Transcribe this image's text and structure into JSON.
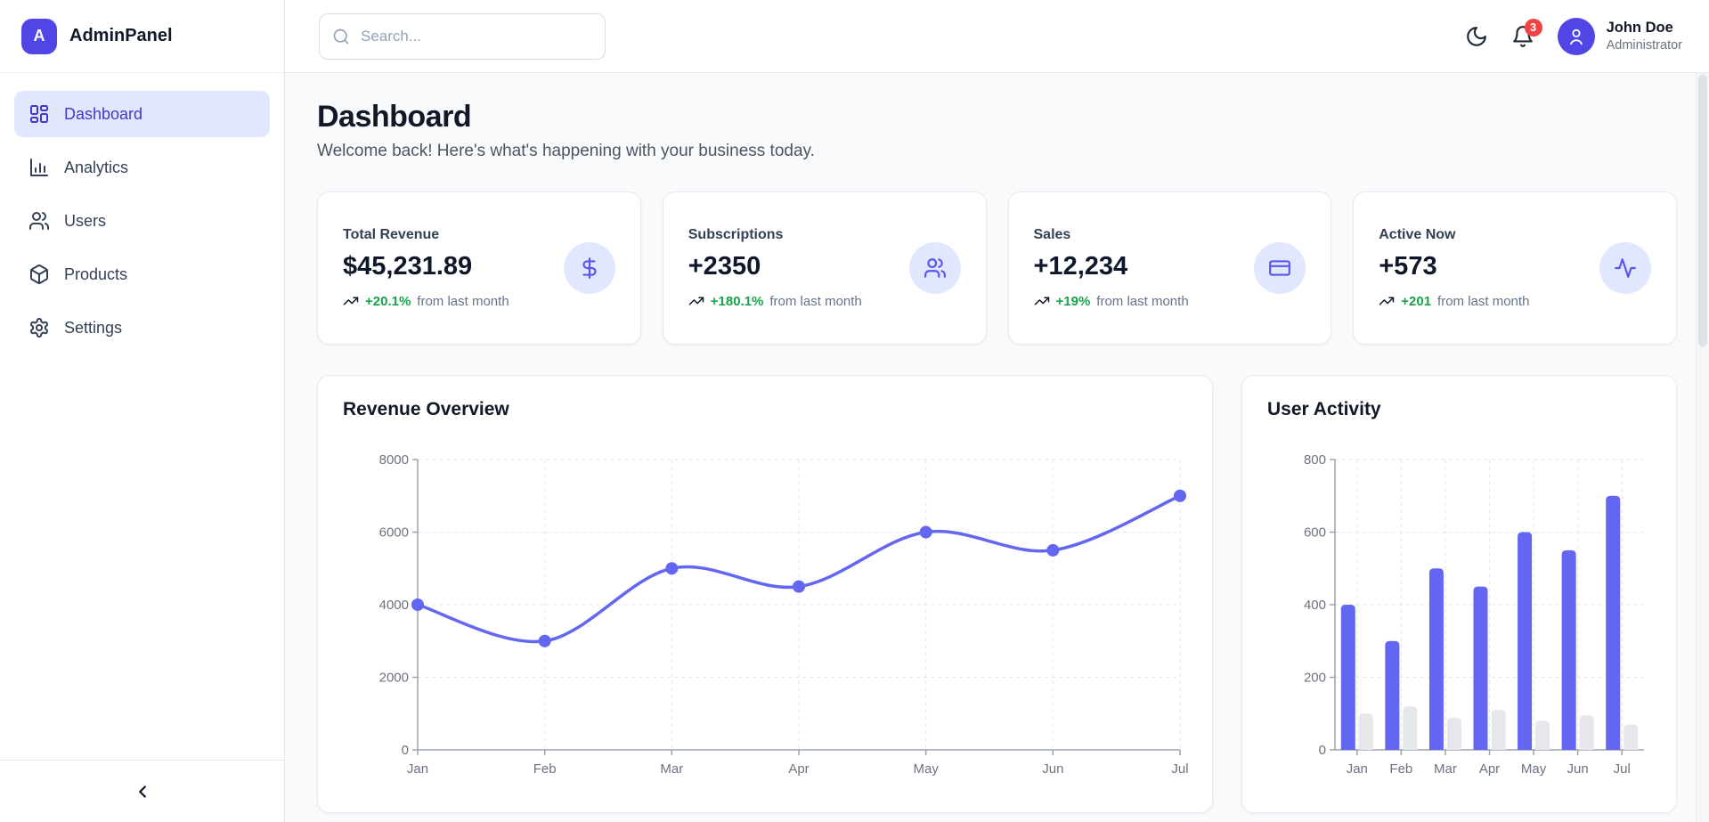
{
  "app": {
    "logo_letter": "A",
    "name": "AdminPanel"
  },
  "sidebar": {
    "items": [
      {
        "label": "Dashboard",
        "icon": "layout-dashboard-icon",
        "active": true
      },
      {
        "label": "Analytics",
        "icon": "bar-chart-icon",
        "active": false
      },
      {
        "label": "Users",
        "icon": "users-icon",
        "active": false
      },
      {
        "label": "Products",
        "icon": "package-icon",
        "active": false
      },
      {
        "label": "Settings",
        "icon": "gear-icon",
        "active": false
      }
    ],
    "collapse_icon": "chevron-left-icon"
  },
  "header": {
    "search": {
      "placeholder": "Search..."
    },
    "theme_toggle_icon": "moon-icon",
    "notifications": {
      "icon": "bell-icon",
      "count": "3"
    },
    "user": {
      "name": "John Doe",
      "role": "Administrator",
      "avatar_icon": "person-icon"
    }
  },
  "page": {
    "title": "Dashboard",
    "subtitle": "Welcome back! Here's what's happening with your business today."
  },
  "stats": [
    {
      "label": "Total Revenue",
      "value": "$45,231.89",
      "change": "+20.1%",
      "change_suffix": "from last month",
      "icon": "dollar-icon",
      "trend_icon": "trending-up-icon"
    },
    {
      "label": "Subscriptions",
      "value": "+2350",
      "change": "+180.1%",
      "change_suffix": "from last month",
      "icon": "users-icon",
      "trend_icon": "trending-up-icon"
    },
    {
      "label": "Sales",
      "value": "+12,234",
      "change": "+19%",
      "change_suffix": "from last month",
      "icon": "credit-card-icon",
      "trend_icon": "trending-up-icon"
    },
    {
      "label": "Active Now",
      "value": "+573",
      "change": "+201",
      "change_suffix": "from last month",
      "icon": "activity-icon",
      "trend_icon": "trending-up-icon"
    }
  ],
  "chart_data": [
    {
      "type": "line",
      "title": "Revenue Overview",
      "x": [
        "Jan",
        "Feb",
        "Mar",
        "Apr",
        "May",
        "Jun",
        "Jul"
      ],
      "series": [
        {
          "name": "revenue",
          "values": [
            4000,
            3000,
            5000,
            4500,
            6000,
            5500,
            7000
          ],
          "color": "#6366f1"
        }
      ],
      "ylim": [
        0,
        8000
      ],
      "yticks": [
        0,
        2000,
        4000,
        6000,
        8000
      ],
      "grid": true,
      "legend": "none",
      "smooth": true,
      "markers": true
    },
    {
      "type": "bar",
      "title": "User Activity",
      "categories": [
        "Jan",
        "Feb",
        "Mar",
        "Apr",
        "May",
        "Jun",
        "Jul"
      ],
      "series": [
        {
          "name": "primary",
          "values": [
            400,
            300,
            500,
            450,
            600,
            550,
            700
          ],
          "color": "#6366f1"
        },
        {
          "name": "secondary",
          "values": [
            100,
            120,
            88,
            110,
            80,
            95,
            70
          ],
          "color": "#e5e7eb"
        }
      ],
      "ylim": [
        0,
        800
      ],
      "yticks": [
        0,
        200,
        400,
        600,
        800
      ],
      "grid": true,
      "legend": "none"
    }
  ],
  "colors": {
    "primary": "#4f46e5",
    "chart_line": "#6366f1",
    "bar_secondary": "#e5e7eb",
    "active_item_bg": "#e0e7ff",
    "success_green": "#16a34a",
    "badge_red": "#ef4444",
    "grid_line": "#e5e7eb",
    "axis_line": "#9ca3af",
    "tick_text": "#6b7280",
    "page_bg": "#f8fafc"
  }
}
